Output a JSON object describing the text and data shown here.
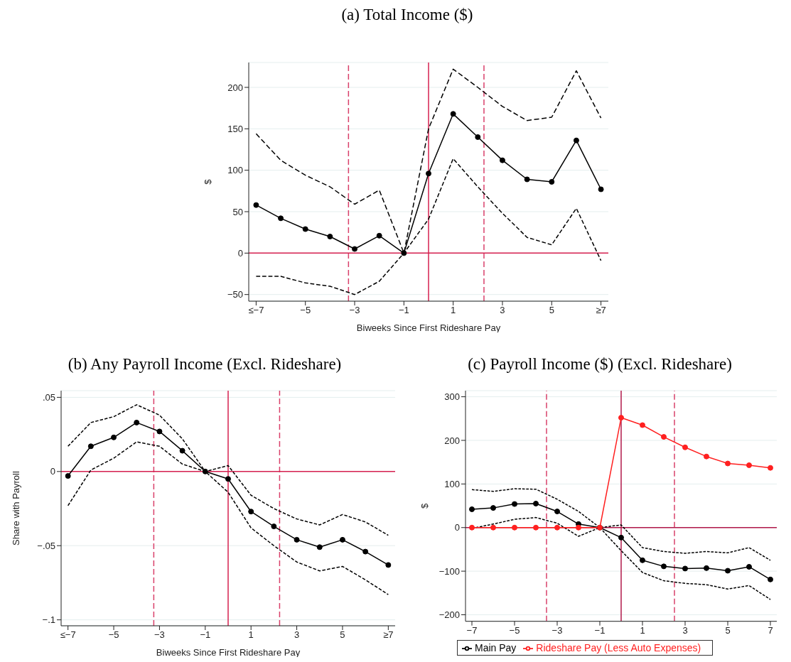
{
  "chart_data": [
    {
      "type": "line",
      "title": "(a) Total Income ($)",
      "xlabel": "Biweeks Since First Rideshare Pay",
      "ylabel": "$",
      "x": [
        -7,
        -6,
        -5,
        -4,
        -3,
        -2,
        -1,
        0,
        1,
        2,
        3,
        4,
        5,
        6,
        7
      ],
      "series": [
        {
          "color": "#000000",
          "marker": "circle",
          "line_style": "solid",
          "values": [
            58,
            42,
            29,
            20,
            5,
            21,
            0,
            96,
            168,
            140,
            112,
            89,
            86,
            136,
            77
          ]
        },
        {
          "color": "#000000",
          "marker": "none",
          "line_style": "dashed",
          "values": [
            144,
            112,
            94,
            80,
            59,
            76,
            0,
            150,
            222,
            200,
            177,
            160,
            164,
            220,
            163
          ]
        },
        {
          "color": "#000000",
          "marker": "none",
          "line_style": "dashed",
          "values": [
            -28,
            -28,
            -36,
            -40,
            -50,
            -34,
            0,
            41,
            114,
            80,
            48,
            19,
            10,
            54,
            -9
          ]
        }
      ],
      "xlim": [
        -7.3,
        7.3
      ],
      "xticks": [
        {
          "value": -7,
          "label": "≤−7"
        },
        {
          "value": -5,
          "label": "−5"
        },
        {
          "value": -3,
          "label": "−3"
        },
        {
          "value": -1,
          "label": "−1"
        },
        1,
        3,
        5,
        {
          "value": 7,
          "label": "≥7"
        }
      ],
      "ylim": [
        -58,
        230
      ],
      "yticks": [
        {
          "value": -50,
          "label": "−50"
        },
        0,
        50,
        100,
        150,
        200
      ],
      "ref_lines": [
        {
          "axis": "x",
          "value": -3.25,
          "color": "#d9406a",
          "line_style": "dashed"
        },
        {
          "axis": "x",
          "value": 0,
          "color": "#d6204f",
          "line_style": "solid"
        },
        {
          "axis": "x",
          "value": 2.25,
          "color": "#d9406a",
          "line_style": "dashed"
        },
        {
          "axis": "y",
          "value": 0,
          "color": "#d6204f",
          "line_style": "solid"
        }
      ],
      "grid": "y",
      "legend": false
    },
    {
      "type": "line",
      "title": "(b) Any Payroll Income (Excl. Rideshare)",
      "xlabel": "Biweeks Since First Rideshare Pay",
      "ylabel": "Share with Payroll",
      "x": [
        -7,
        -6,
        -5,
        -4,
        -3,
        -2,
        -1,
        0,
        1,
        2,
        3,
        4,
        5,
        6,
        7
      ],
      "series": [
        {
          "color": "#000000",
          "marker": "circle",
          "line_style": "solid",
          "values": [
            -0.003,
            0.017,
            0.023,
            0.033,
            0.027,
            0.014,
            0,
            -0.005,
            -0.027,
            -0.037,
            -0.046,
            -0.051,
            -0.046,
            -0.054,
            -0.063
          ]
        },
        {
          "color": "#000000",
          "marker": "none",
          "line_style": "dashed",
          "values": [
            0.017,
            0.033,
            0.037,
            0.045,
            0.038,
            0.022,
            0,
            0.004,
            -0.016,
            -0.025,
            -0.032,
            -0.036,
            -0.029,
            -0.034,
            -0.043
          ]
        },
        {
          "color": "#000000",
          "marker": "none",
          "line_style": "dashed",
          "values": [
            -0.023,
            0.001,
            0.009,
            0.02,
            0.017,
            0.005,
            0,
            -0.014,
            -0.038,
            -0.05,
            -0.061,
            -0.067,
            -0.064,
            -0.073,
            -0.083
          ]
        }
      ],
      "xlim": [
        -7.3,
        7.3
      ],
      "xticks": [
        {
          "value": -7,
          "label": "≤−7"
        },
        {
          "value": -5,
          "label": "−5"
        },
        {
          "value": -3,
          "label": "−3"
        },
        {
          "value": -1,
          "label": "−1"
        },
        1,
        3,
        5,
        {
          "value": 7,
          "label": "≥7"
        }
      ],
      "ylim": [
        -0.104,
        0.0545
      ],
      "yticks": [
        {
          "value": -0.1,
          "label": "−.1"
        },
        {
          "value": -0.05,
          "label": "−.05"
        },
        0,
        {
          "value": 0.05,
          "label": ".05"
        }
      ],
      "ref_lines": [
        {
          "axis": "x",
          "value": -3.25,
          "color": "#d9406a",
          "line_style": "dashed"
        },
        {
          "axis": "x",
          "value": 0,
          "color": "#d6204f",
          "line_style": "solid"
        },
        {
          "axis": "x",
          "value": 2.25,
          "color": "#d9406a",
          "line_style": "dashed"
        },
        {
          "axis": "y",
          "value": 0,
          "color": "#d6204f",
          "line_style": "solid"
        }
      ],
      "grid": "y",
      "legend": false
    },
    {
      "type": "line",
      "title": "(c) Payroll Income ($) (Excl. Rideshare)",
      "ylabel": "$",
      "x": [
        -7,
        -6,
        -5,
        -4,
        -3,
        -2,
        -1,
        0,
        1,
        2,
        3,
        4,
        5,
        6,
        7
      ],
      "series": [
        {
          "name": "Main Pay",
          "color": "#000000",
          "marker": "circle",
          "line_style": "solid",
          "values": [
            42,
            45,
            54,
            55,
            37,
            8,
            0,
            -23,
            -75,
            -89,
            -94,
            -93,
            -99,
            -90,
            -119
          ]
        },
        {
          "color": "#000000",
          "marker": "none",
          "line_style": "dashed",
          "values": [
            87,
            83,
            89,
            88,
            65,
            37,
            0,
            6,
            -46,
            -55,
            -59,
            -55,
            -58,
            -46,
            -75
          ]
        },
        {
          "color": "#000000",
          "marker": "none",
          "line_style": "dashed",
          "values": [
            -2,
            8,
            19,
            23,
            10,
            -20,
            0,
            -53,
            -103,
            -122,
            -128,
            -131,
            -141,
            -133,
            -165
          ]
        },
        {
          "name": "Rideshare Pay (Less Auto Expenses)",
          "color": "#ff2020",
          "marker": "circle",
          "line_style": "solid",
          "values": [
            0,
            0,
            0,
            0,
            0,
            0,
            0,
            252,
            235,
            208,
            184,
            163,
            147,
            143,
            137
          ]
        }
      ],
      "xlim": [
        -7.3,
        7.3
      ],
      "xticks": [
        {
          "value": -7,
          "label": "−7"
        },
        {
          "value": -5,
          "label": "−5"
        },
        {
          "value": -3,
          "label": "−3"
        },
        {
          "value": -1,
          "label": "−1"
        },
        1,
        3,
        5,
        7
      ],
      "ylim": [
        -215,
        314
      ],
      "yticks": [
        {
          "value": -200,
          "label": "−200"
        },
        {
          "value": -100,
          "label": "−100"
        },
        0,
        100,
        200,
        300
      ],
      "ref_lines": [
        {
          "axis": "x",
          "value": -3.5,
          "color": "#d9406a",
          "line_style": "dashed"
        },
        {
          "axis": "x",
          "value": 0,
          "color": "#b0184a",
          "line_style": "solid"
        },
        {
          "axis": "x",
          "value": 2.5,
          "color": "#d9406a",
          "line_style": "dashed"
        },
        {
          "axis": "y",
          "value": 0,
          "color": "#b0184a",
          "line_style": "solid"
        }
      ],
      "grid": "y",
      "legend": "bottom"
    }
  ]
}
